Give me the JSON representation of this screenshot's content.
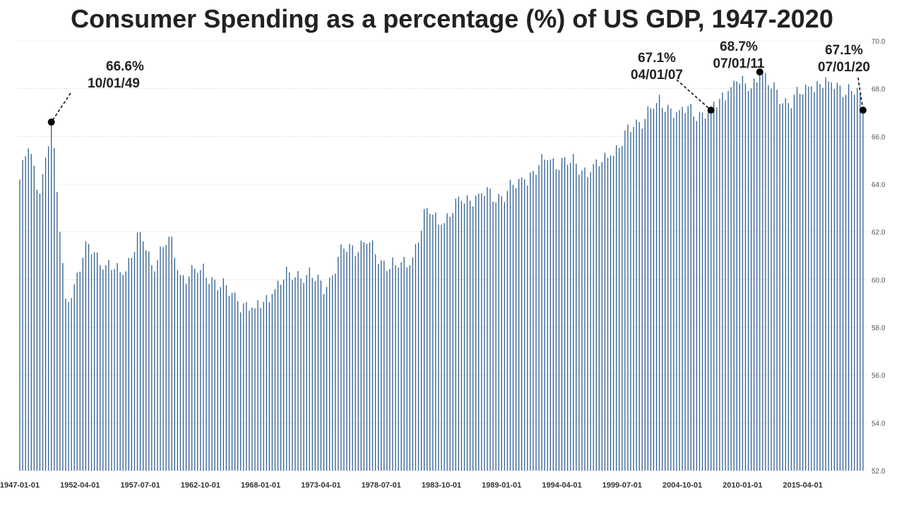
{
  "chart_data": {
    "type": "bar",
    "title": "Consumer Spending as a percentage (%) of US GDP, 1947-2020",
    "xlabel": "",
    "ylabel": "",
    "ylim": [
      52,
      70
    ],
    "yticks": [
      "52.0",
      "54.0",
      "56.0",
      "58.0",
      "60.0",
      "62.0",
      "64.0",
      "66.0",
      "68.0",
      "70.0"
    ],
    "ytick_values": [
      52,
      54,
      56,
      58,
      60,
      62,
      64,
      66,
      68,
      70
    ],
    "grid": true,
    "bar_color": "#2f5f8f",
    "x_start": "1947-01-01",
    "x_end": "2020-07-01",
    "frequency": "quarterly",
    "xtick_labels": [
      "1947-01-01",
      "1952-04-01",
      "1957-07-01",
      "1962-10-01",
      "1968-01-01",
      "1973-04-01",
      "1978-07-01",
      "1983-10-01",
      "1989-01-01",
      "1994-04-01",
      "1999-07-01",
      "2004-10-01",
      "2010-01-01",
      "2015-04-01"
    ],
    "anchors": [
      [
        "1947-01-01",
        64.2
      ],
      [
        "1947-10-01",
        65.5
      ],
      [
        "1948-10-01",
        63.6
      ],
      [
        "1949-10-01",
        66.6
      ],
      [
        "1950-07-01",
        62.0
      ],
      [
        "1951-01-01",
        59.2
      ],
      [
        "1951-10-01",
        59.8
      ],
      [
        "1953-01-01",
        61.5
      ],
      [
        "1954-07-01",
        60.6
      ],
      [
        "1956-01-01",
        60.2
      ],
      [
        "1957-07-01",
        62.0
      ],
      [
        "1958-07-01",
        60.6
      ],
      [
        "1960-01-01",
        61.8
      ],
      [
        "1961-01-01",
        60.2
      ],
      [
        "1962-10-01",
        60.4
      ],
      [
        "1964-01-01",
        60.0
      ],
      [
        "1966-01-01",
        59.1
      ],
      [
        "1967-07-01",
        58.8
      ],
      [
        "1969-01-01",
        59.4
      ],
      [
        "1970-07-01",
        60.3
      ],
      [
        "1972-01-01",
        60.2
      ],
      [
        "1973-10-01",
        59.7
      ],
      [
        "1975-04-01",
        61.3
      ],
      [
        "1977-04-01",
        61.5
      ],
      [
        "1978-07-01",
        60.8
      ],
      [
        "1979-10-01",
        60.6
      ],
      [
        "1981-01-01",
        60.6
      ],
      [
        "1982-07-01",
        63.0
      ],
      [
        "1983-10-01",
        62.3
      ],
      [
        "1985-07-01",
        63.3
      ],
      [
        "1987-01-01",
        63.6
      ],
      [
        "1989-01-01",
        63.5
      ],
      [
        "1991-01-01",
        64.2
      ],
      [
        "1993-01-01",
        65.0
      ],
      [
        "1995-01-01",
        64.9
      ],
      [
        "1996-10-01",
        64.5
      ],
      [
        "1998-07-01",
        65.2
      ],
      [
        "2000-07-01",
        66.4
      ],
      [
        "2002-07-01",
        67.4
      ],
      [
        "2004-07-01",
        67.1
      ],
      [
        "2006-07-01",
        67.0
      ],
      [
        "2007-04-01",
        67.1
      ],
      [
        "2008-10-01",
        67.9
      ],
      [
        "2009-07-01",
        68.3
      ],
      [
        "2010-07-01",
        67.9
      ],
      [
        "2011-07-01",
        68.7
      ],
      [
        "2012-07-01",
        68.0
      ],
      [
        "2014-01-01",
        67.4
      ],
      [
        "2016-01-01",
        68.1
      ],
      [
        "2017-07-01",
        68.3
      ],
      [
        "2019-07-01",
        67.9
      ],
      [
        "2020-04-01",
        67.8
      ],
      [
        "2020-07-01",
        67.1
      ]
    ],
    "annotations": [
      {
        "value": "66.6%",
        "date": "10/01/49",
        "x": "1949-10-01",
        "y": 66.6
      },
      {
        "value": "67.1%",
        "date": "04/01/07",
        "x": "2007-04-01",
        "y": 67.1
      },
      {
        "value": "68.7%",
        "date": "07/01/11",
        "x": "2011-07-01",
        "y": 68.7
      },
      {
        "value": "67.1%",
        "date": "07/01/20",
        "x": "2020-07-01",
        "y": 67.1
      }
    ]
  }
}
